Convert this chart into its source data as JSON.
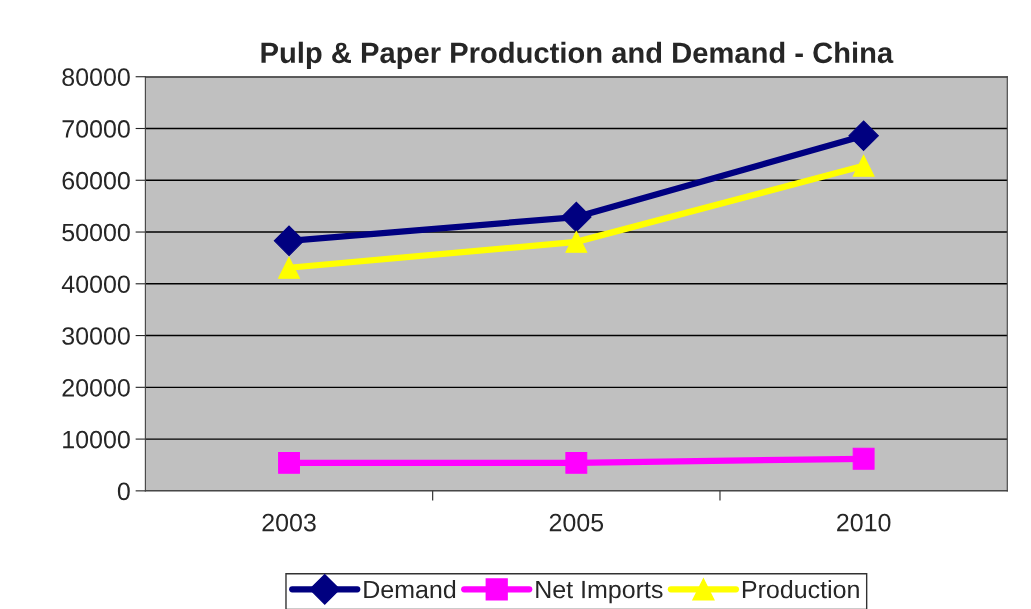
{
  "chart_data": {
    "type": "line",
    "title": "Pulp & Paper Production and Demand - China",
    "categories": [
      "2003",
      "2005",
      "2010"
    ],
    "series": [
      {
        "name": "Demand",
        "color": "#000080",
        "marker": "diamond",
        "values": [
          48300,
          52900,
          68600
        ]
      },
      {
        "name": "Net Imports",
        "color": "#ff00ff",
        "marker": "square",
        "values": [
          5400,
          5400,
          6200
        ]
      },
      {
        "name": "Production",
        "color": "#ffff00",
        "marker": "triangle",
        "values": [
          43100,
          48100,
          62800
        ]
      }
    ],
    "ylim": [
      0,
      80000
    ],
    "yticks": [
      0,
      10000,
      20000,
      30000,
      40000,
      50000,
      60000,
      70000,
      80000
    ],
    "grid": "y",
    "legend": "bottom",
    "line_style": "solid"
  }
}
